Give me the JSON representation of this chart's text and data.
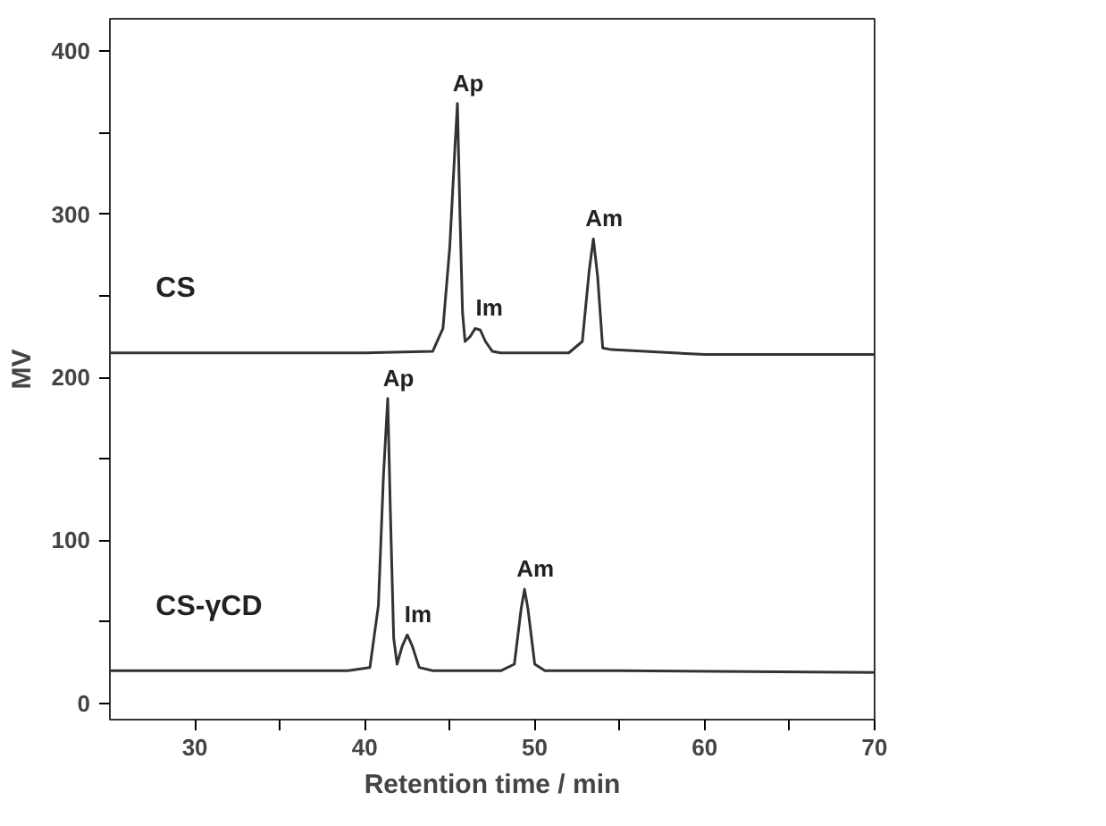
{
  "chart_data": {
    "type": "line",
    "xlabel": "Retention time / min",
    "ylabel": "MV",
    "xlim": [
      25,
      70
    ],
    "ylim": [
      -10,
      420
    ],
    "xticks": [
      30,
      {
        "value": 35,
        "label": null
      },
      40,
      {
        "value": 45,
        "label": null
      },
      50,
      {
        "value": 55,
        "label": null
      },
      60,
      {
        "value": 65,
        "label": null
      },
      70
    ],
    "yticks": [
      0,
      {
        "value": 50,
        "label": null
      },
      100,
      {
        "value": 150,
        "label": null
      },
      200,
      {
        "value": 250,
        "label": null
      },
      300,
      {
        "value": 350,
        "label": null
      },
      400
    ],
    "marker": "none",
    "line_style": "solid",
    "series": [
      {
        "name": "CS",
        "color": "#333333",
        "x": [
          25,
          40,
          44,
          44.6,
          45,
          45.3,
          45.45,
          45.6,
          45.75,
          45.9,
          46.2,
          46.5,
          46.8,
          47.1,
          47.5,
          48,
          52,
          52.8,
          53.2,
          53.45,
          53.7,
          54,
          54.5,
          60,
          70
        ],
        "values": [
          215,
          215,
          216,
          230,
          280,
          340,
          368,
          300,
          240,
          222,
          225,
          230,
          229,
          222,
          216,
          215,
          215,
          222,
          265,
          285,
          262,
          218,
          217,
          214,
          214
        ]
      },
      {
        "name": "CS-γCD",
        "color": "#333333",
        "x": [
          25,
          39,
          40.3,
          40.8,
          41.1,
          41.35,
          41.5,
          41.7,
          41.9,
          42.2,
          42.5,
          42.8,
          43.2,
          44,
          48,
          48.8,
          49.2,
          49.4,
          49.6,
          50,
          50.6,
          55,
          70
        ],
        "values": [
          20,
          20,
          22,
          60,
          140,
          187,
          120,
          40,
          24,
          35,
          42,
          35,
          22,
          20,
          20,
          24,
          58,
          70,
          58,
          24,
          20,
          20,
          19
        ]
      }
    ],
    "annotations": [
      {
        "text": "Ap",
        "x": 45.45,
        "y": 368
      },
      {
        "text": "Im",
        "x": 46.7,
        "y": 230
      },
      {
        "text": "Am",
        "x": 53.45,
        "y": 285
      },
      {
        "text": "Ap",
        "x": 41.35,
        "y": 187
      },
      {
        "text": "Im",
        "x": 42.5,
        "y": 42
      },
      {
        "text": "Am",
        "x": 49.4,
        "y": 70
      }
    ]
  }
}
